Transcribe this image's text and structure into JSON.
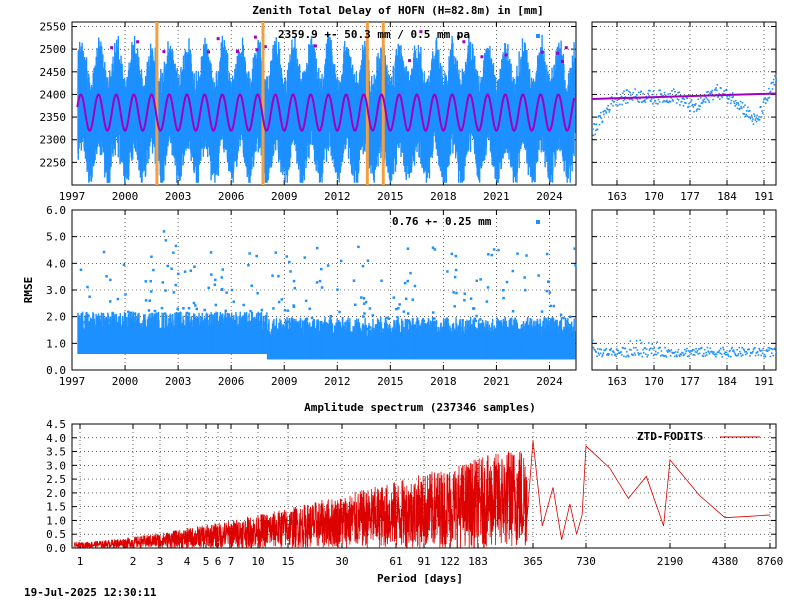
{
  "top_title": "Zenith Total Delay of HOFN (H=82.8m) in [mm]",
  "ztd_annotation": "2359.9 +-  50.3 mm /  0.5 mm pa",
  "rmse_annotation": "0.76 +-  0.25 mm",
  "rmse_ylabel": "RMSE",
  "spectrum_title": "Amplitude spectrum (237346 samples)",
  "spectrum_xlabel": "Period [days]",
  "legend_label": "ZTD-FODITS",
  "timestamp": "19-Jul-2025 12:30:11",
  "colors": {
    "points": "#1e90ff",
    "fit": "#a000c0",
    "change": "#f4a040",
    "spectrum": "#dd0000"
  },
  "chart_data": [
    {
      "type": "scatter",
      "name": "ztd-timeseries",
      "ylim": [
        2200,
        2560
      ],
      "xlim": [
        1997,
        2025.5
      ],
      "yticks": [
        "2550",
        "2500",
        "2450",
        "2400",
        "2350",
        "2300",
        "2250"
      ],
      "xticks": [
        "1997",
        "2000",
        "2003",
        "2006",
        "2009",
        "2012",
        "2015",
        "2018",
        "2021",
        "2024"
      ],
      "mean": 2359.9,
      "amplitude": 40,
      "seasonal_period_years": 1,
      "spread_upper": 2520,
      "spread_lower": 2210,
      "change_epochs": [
        2001.8,
        2007.8,
        2013.7,
        2014.6
      ],
      "grid": true
    },
    {
      "type": "scatter",
      "name": "ztd-zoom",
      "ylim": [
        2200,
        2560
      ],
      "xticks": [
        "163",
        "170",
        "177",
        "184",
        "191"
      ],
      "values_approx": [
        2320,
        2390,
        2400,
        2395,
        2400,
        2370,
        2410,
        2390,
        2340,
        2440
      ],
      "grid": true
    },
    {
      "type": "scatter",
      "name": "rmse-timeseries",
      "ylabel": "RMSE",
      "ylim": [
        0,
        6
      ],
      "yticks": [
        "6.0",
        "5.0",
        "4.0",
        "3.0",
        "2.0",
        "1.0",
        "0.0"
      ],
      "xticks": [
        "1997",
        "2000",
        "2003",
        "2006",
        "2009",
        "2012",
        "2015",
        "2018",
        "2021",
        "2024"
      ],
      "base_before_2008": 0.9,
      "base_after_2008": 0.7,
      "max_outlier": 5.7,
      "grid": true
    },
    {
      "type": "scatter",
      "name": "rmse-zoom",
      "ylim": [
        0,
        6
      ],
      "xticks": [
        "163",
        "170",
        "177",
        "184",
        "191"
      ],
      "typical": 0.7,
      "grid": true
    },
    {
      "type": "line",
      "name": "amplitude-spectrum",
      "title": "Amplitude spectrum (237346 samples)",
      "xlabel": "Period [days]",
      "xscale": "reciprocal",
      "xticks": [
        "1",
        "2",
        "3",
        "4",
        "5",
        "6",
        "7",
        "10",
        "15",
        "30",
        "61",
        "91",
        "122",
        "183",
        "365",
        "730",
        "2190",
        "4380",
        "8760"
      ],
      "yticks": [
        "4.5",
        "4.0",
        "3.5",
        "3.0",
        "2.5",
        "2.0",
        "1.5",
        "1.0",
        "0.5",
        "0.0"
      ],
      "ylim": [
        0,
        4.5
      ],
      "series": [
        {
          "name": "ZTD-FODITS"
        }
      ],
      "key_peaks": [
        {
          "period": 365,
          "amplitude": 3.9
        },
        {
          "period": 730,
          "amplitude": 3.7
        },
        {
          "period": 2190,
          "amplitude": 3.2
        },
        {
          "period": 4380,
          "amplitude": 1.1
        },
        {
          "period": 8760,
          "amplitude": 1.2
        }
      ],
      "legend": "top-right",
      "grid": true
    }
  ]
}
